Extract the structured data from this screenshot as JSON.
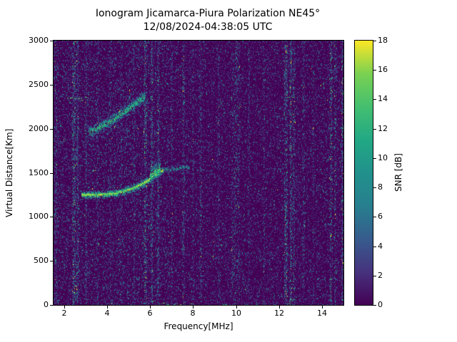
{
  "chart_data": {
    "type": "heatmap",
    "title": "Ionogram Jicamarca-Piura Polarization NE45°",
    "subtitle": "12/08/2024-04:38:05 UTC",
    "xlabel": "Frequency[MHz]",
    "ylabel": "Virtual Distance[Km]",
    "xlim": [
      1.5,
      15.0
    ],
    "ylim": [
      0,
      3000
    ],
    "xticks": [
      2,
      4,
      6,
      8,
      10,
      12,
      14
    ],
    "yticks": [
      0,
      500,
      1000,
      1500,
      2000,
      2500,
      3000
    ],
    "colorbar": {
      "label": "SNR [dB]",
      "ticks": [
        0,
        2,
        4,
        6,
        8,
        10,
        12,
        14,
        16,
        18
      ],
      "range": [
        0,
        18
      ],
      "colormap": "viridis"
    },
    "colormap_stops": [
      "#440154",
      "#46327e",
      "#365c8d",
      "#277f8e",
      "#21918c",
      "#22a884",
      "#44bf70",
      "#7ad151",
      "#fde725"
    ],
    "background_color": "#440154",
    "noise": {
      "seed": 1370542,
      "density": 0.34,
      "mean_snr": 2.1,
      "low_freq_extra": 0.13,
      "low_freq_max_mhz": 6.9
    },
    "interference_columns": [
      {
        "freq": 1.62,
        "width_mhz": 0.05,
        "density": 1.0,
        "mean_snr": 3.5
      },
      {
        "freq": 2.45,
        "width_mhz": 0.07,
        "density": 2.6,
        "mean_snr": 4.5
      },
      {
        "freq": 2.62,
        "width_mhz": 0.05,
        "density": 1.6,
        "mean_snr": 3.5
      },
      {
        "freq": 3.02,
        "width_mhz": 0.04,
        "density": 1.0,
        "mean_snr": 3.0
      },
      {
        "freq": 3.55,
        "width_mhz": 0.04,
        "density": 0.8,
        "mean_snr": 2.5
      },
      {
        "freq": 4.15,
        "width_mhz": 0.04,
        "density": 0.9,
        "mean_snr": 2.5
      },
      {
        "freq": 4.65,
        "width_mhz": 0.04,
        "density": 0.8,
        "mean_snr": 2.5
      },
      {
        "freq": 5.25,
        "width_mhz": 0.04,
        "density": 0.9,
        "mean_snr": 2.5
      },
      {
        "freq": 5.78,
        "width_mhz": 0.06,
        "density": 2.2,
        "mean_snr": 4.0
      },
      {
        "freq": 6.08,
        "width_mhz": 0.05,
        "density": 1.8,
        "mean_snr": 3.5
      },
      {
        "freq": 6.38,
        "width_mhz": 0.05,
        "density": 1.5,
        "mean_snr": 3.5
      },
      {
        "freq": 7.0,
        "width_mhz": 0.04,
        "density": 1.0,
        "mean_snr": 3.0
      },
      {
        "freq": 7.55,
        "width_mhz": 0.05,
        "density": 1.4,
        "mean_snr": 3.5
      },
      {
        "freq": 8.0,
        "width_mhz": 0.04,
        "density": 0.8,
        "mean_snr": 2.5
      },
      {
        "freq": 8.35,
        "width_mhz": 0.05,
        "density": 1.2,
        "mean_snr": 3.0
      },
      {
        "freq": 9.2,
        "width_mhz": 0.04,
        "density": 0.8,
        "mean_snr": 2.5
      },
      {
        "freq": 9.97,
        "width_mhz": 0.2,
        "density": 2.8,
        "mean_snr": 3.2
      },
      {
        "freq": 10.6,
        "width_mhz": 0.04,
        "density": 0.8,
        "mean_snr": 2.5
      },
      {
        "freq": 11.3,
        "width_mhz": 0.04,
        "density": 0.7,
        "mean_snr": 2.5
      },
      {
        "freq": 12.32,
        "width_mhz": 0.07,
        "density": 2.4,
        "mean_snr": 4.5
      },
      {
        "freq": 12.55,
        "width_mhz": 0.05,
        "density": 1.8,
        "mean_snr": 4.0
      },
      {
        "freq": 12.7,
        "width_mhz": 0.05,
        "density": 1.4,
        "mean_snr": 3.5
      },
      {
        "freq": 13.15,
        "width_mhz": 0.05,
        "density": 1.0,
        "mean_snr": 3.0
      },
      {
        "freq": 13.6,
        "width_mhz": 0.04,
        "density": 0.7,
        "mean_snr": 2.5
      },
      {
        "freq": 14.42,
        "width_mhz": 0.06,
        "density": 1.6,
        "mean_snr": 4.0
      },
      {
        "freq": 14.62,
        "width_mhz": 0.05,
        "density": 1.2,
        "mean_snr": 3.5
      },
      {
        "freq": 14.95,
        "width_mhz": 0.05,
        "density": 1.4,
        "mean_snr": 4.0
      }
    ],
    "echo_traces": [
      {
        "name": "f-region-first-hop",
        "peak_snr": 18,
        "spread_km": 50,
        "density": 1.3,
        "core": true,
        "points": [
          [
            2.82,
            1248
          ],
          [
            3.2,
            1250
          ],
          [
            3.6,
            1252
          ],
          [
            4.0,
            1258
          ],
          [
            4.4,
            1268
          ],
          [
            4.8,
            1292
          ],
          [
            5.2,
            1325
          ],
          [
            5.6,
            1370
          ],
          [
            5.9,
            1415
          ],
          [
            6.2,
            1470
          ],
          [
            6.6,
            1530
          ]
        ]
      },
      {
        "name": "first-hop-fadeout",
        "peak_snr": 12,
        "spread_km": 60,
        "density": 0.5,
        "core": false,
        "points": [
          [
            6.6,
            1535
          ],
          [
            7.0,
            1540
          ],
          [
            7.4,
            1555
          ],
          [
            7.8,
            1560
          ]
        ]
      },
      {
        "name": "near-critical-spread-blob",
        "peak_snr": 16,
        "spread_km": 130,
        "density": 2.4,
        "core": false,
        "points": [
          [
            6.0,
            1470
          ],
          [
            6.25,
            1510
          ],
          [
            6.5,
            1555
          ]
        ]
      },
      {
        "name": "f-region-second-hop",
        "peak_snr": 15,
        "spread_km": 90,
        "density": 1.6,
        "core": false,
        "points": [
          [
            3.15,
            1955
          ],
          [
            3.5,
            1995
          ],
          [
            3.85,
            2040
          ],
          [
            4.2,
            2090
          ],
          [
            4.55,
            2150
          ],
          [
            4.9,
            2210
          ],
          [
            5.25,
            2270
          ],
          [
            5.55,
            2330
          ],
          [
            5.75,
            2360
          ]
        ]
      }
    ],
    "speckle_clouds": [
      {
        "x_mhz": [
          3.2,
          6.3
        ],
        "km": [
          1300,
          1600
        ],
        "density": 0.03,
        "mean_snr": 4.0
      },
      {
        "x_mhz": [
          2.9,
          6.2
        ],
        "km": [
          1880,
          2450
        ],
        "density": 0.045,
        "mean_snr": 4.5
      },
      {
        "x_mhz": [
          2.2,
          3.2
        ],
        "km": [
          2280,
          2420
        ],
        "density": 0.05,
        "mean_snr": 5.0
      }
    ],
    "horizontal_artifacts": [
      {
        "km": 2352,
        "from_mhz": 2.15,
        "to_mhz": 3.15,
        "snr": 16
      },
      {
        "km": 2352,
        "from_mhz": 12.25,
        "to_mhz": 12.7,
        "snr": 15
      },
      {
        "km": 8,
        "from_mhz": 6.35,
        "to_mhz": 8.25,
        "snr": 16
      },
      {
        "km": 8,
        "from_mhz": 9.4,
        "to_mhz": 9.75,
        "snr": 14
      },
      {
        "km": 8,
        "from_mhz": 12.3,
        "to_mhz": 12.65,
        "snr": 15
      }
    ]
  }
}
